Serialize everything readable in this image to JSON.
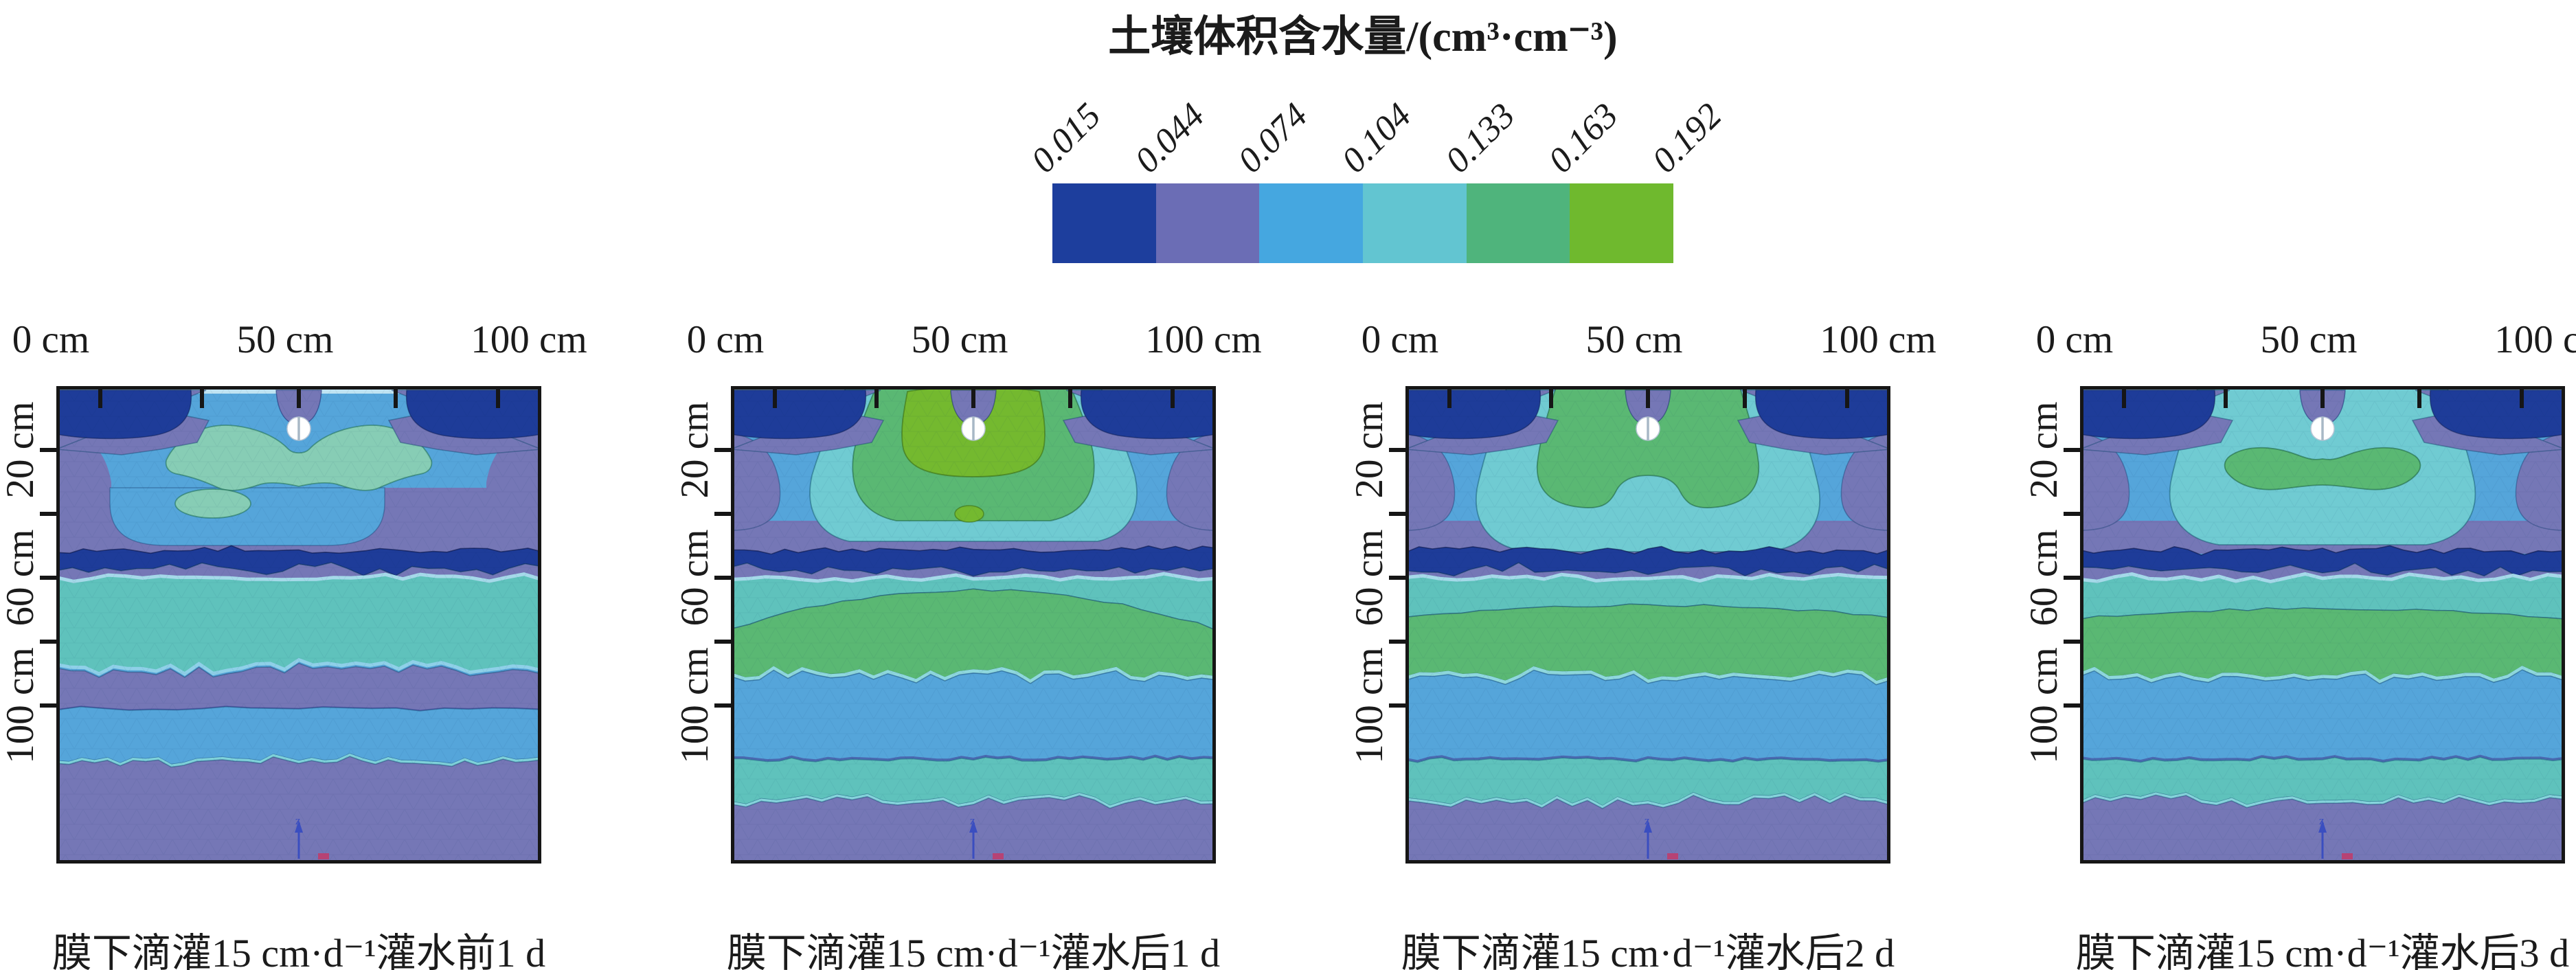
{
  "legend": {
    "title": "土壤体积含水量/(cm³·cm⁻³)",
    "tick_labels": [
      "0.015",
      "0.044",
      "0.074",
      "0.104",
      "0.133",
      "0.163",
      "0.192"
    ],
    "colors": [
      "#1d3e9d",
      "#6b6db5",
      "#45a7e0",
      "#62c5d1",
      "#4fb47c",
      "#6fb92e"
    ]
  },
  "axes": {
    "x_labels": [
      "0 cm",
      "50 cm",
      "100 cm"
    ],
    "y_labels": [
      "20 cm",
      "60 cm",
      "100 cm"
    ]
  },
  "panels": [
    {
      "caption": "膜下滴灌15 cm·d⁻¹灌水前1 d",
      "variant": "pre1d"
    },
    {
      "caption": "膜下滴灌15 cm·d⁻¹灌水后1 d",
      "variant": "post1d"
    },
    {
      "caption": "膜下滴灌15 cm·d⁻¹灌水后2 d",
      "variant": "post2d"
    },
    {
      "caption": "膜下滴灌15 cm·d⁻¹灌水后3 d",
      "variant": "post3d"
    }
  ],
  "glyphs": {
    "z_axis": "z"
  },
  "panel_palette": {
    "dark_blue": "#1e3c99",
    "purple": "#7577b6",
    "blue": "#55a5da",
    "teal": "#5fc2bc",
    "cyan": "#70cbd2",
    "seafoam": "#87cdb5",
    "green": "#5ab873",
    "yellow_green": "#74b92f",
    "pale_line": "#bfe3f2",
    "frame": "#161616",
    "z_arrow": "#3a4ec0",
    "red_mark": "#c23a68"
  },
  "chart_data": {
    "type": "heatmap",
    "subtype": "filled-contour-cross-sections",
    "title": "土壤体积含水量/(cm³·cm⁻³)",
    "contour_levels": [
      0.015,
      0.044,
      0.074,
      0.104,
      0.133,
      0.163,
      0.192
    ],
    "level_colors": [
      "#1d3e9d",
      "#6b6db5",
      "#45a7e0",
      "#62c5d1",
      "#4fb47c",
      "#6fb92e"
    ],
    "x_axis": {
      "label_ticks_cm": [
        0,
        50,
        100
      ],
      "tick_labels": [
        "0 cm",
        "50 cm",
        "100 cm"
      ],
      "position": "top"
    },
    "y_axis": {
      "label_ticks_cm": [
        20,
        60,
        100
      ],
      "tick_labels": [
        "20 cm",
        "60 cm",
        "100 cm"
      ],
      "position": "left",
      "direction": "depth-downward"
    },
    "legend_position": "top-center",
    "panels": [
      {
        "caption": "膜下滴灌15 cm·d⁻¹灌水前1 d",
        "features": "Drip emitter (white circle) at surface center; pale seafoam ~0.104-0.133 wings around emitter; purple ~0.044-0.074 upper layer; thin dark-blue ~0.015 jagged band near 55 cm; wide teal ~0.104 band 60-90 cm; purple then blue band ~100-115 cm; purple below"
      },
      {
        "caption": "膜下滴灌15 cm·d⁻¹灌水后1 d",
        "features": "Large wetted bulb under emitter with yellow-green core >0.163 ringed by green 0.133-0.163 and cyan 0.104-0.133; dark-blue jagged band ~55 cm; green hump 0.133-0.163 centered near 65-85 cm; blue band ~100 cm; teal strip; purple bottom"
      },
      {
        "caption": "膜下滴灌15 cm·d⁻¹灌水后2 d",
        "features": "Wetted bulb green 0.133-0.163 (no yellow-green core) ringed by cyan; same layered profile below with flatter green band near 70-85 cm"
      },
      {
        "caption": "膜下滴灌15 cm·d⁻¹灌水后3 d",
        "features": "Bulb mostly cyan 0.104-0.133 with small green moustache below emitter; layered profile below similar to day 2"
      }
    ]
  }
}
